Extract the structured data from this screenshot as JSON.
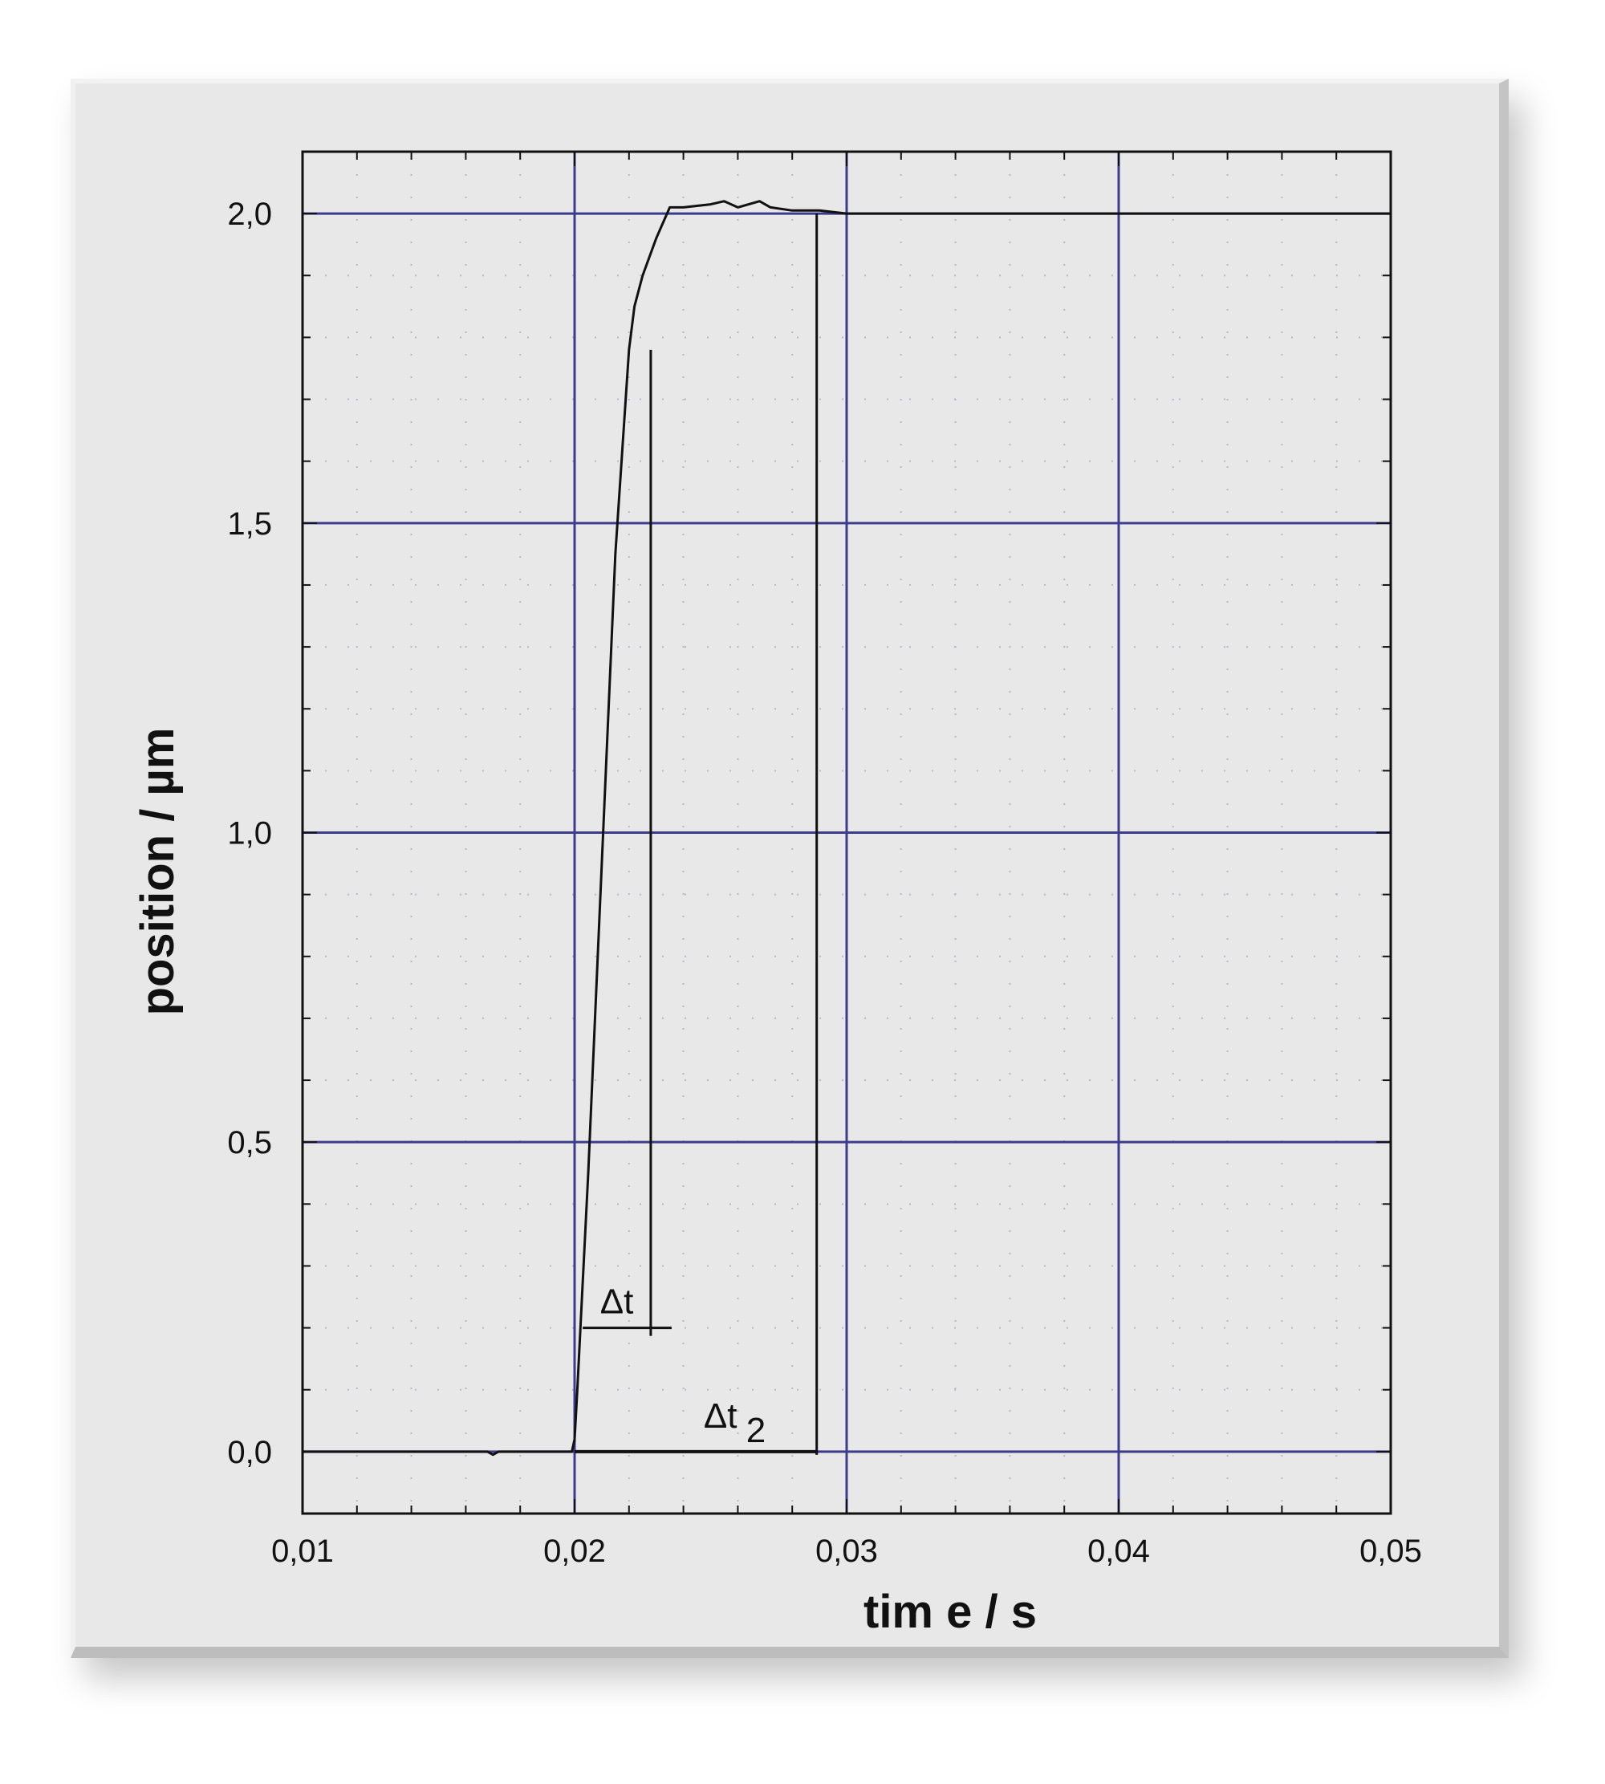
{
  "chart_data": {
    "type": "line",
    "title": "",
    "xlabel": "tim e  / s",
    "ylabel": "position  / µm",
    "xlim": [
      0.01,
      0.05
    ],
    "ylim": [
      -0.1,
      2.1
    ],
    "x_ticks": [
      0.01,
      0.02,
      0.03,
      0.04,
      0.05
    ],
    "x_tick_labels": [
      "0,01",
      "0,02",
      "0,03",
      "0,04",
      "0,05"
    ],
    "y_ticks": [
      0.0,
      0.5,
      1.0,
      1.5,
      2.0
    ],
    "y_tick_labels": [
      "0,0",
      "0,5",
      "1,0",
      "1,5",
      "2,0"
    ],
    "grid": true,
    "legend": "none",
    "colors": {
      "line": "#111111",
      "grid": "#3c3c8c",
      "plot_bg": "#e8e8e8"
    },
    "series": [
      {
        "x": [
          0.01,
          0.0168,
          0.017,
          0.0172,
          0.0199,
          0.02,
          0.0201,
          0.0205,
          0.021,
          0.0215,
          0.022,
          0.0222,
          0.0225,
          0.023,
          0.0235,
          0.024,
          0.025,
          0.0255,
          0.026,
          0.0268,
          0.0272,
          0.028,
          0.029,
          0.03,
          0.035,
          0.04,
          0.045,
          0.05
        ],
        "y": [
          0.0,
          0.0,
          -0.005,
          0.0,
          0.0,
          0.02,
          0.1,
          0.45,
          0.95,
          1.45,
          1.78,
          1.85,
          1.9,
          1.96,
          2.01,
          2.01,
          2.015,
          2.02,
          2.01,
          2.02,
          2.01,
          2.005,
          2.005,
          2.0,
          2.0,
          2.0,
          2.0,
          2.0
        ]
      }
    ],
    "annotations": [
      {
        "text": "Δt",
        "subscript": "",
        "x_start": 0.0203,
        "x_end": 0.0228,
        "y": 0.2
      },
      {
        "text": "Δt",
        "subscript": "2",
        "x_start": 0.02,
        "x_end": 0.0289,
        "y": 0.0
      }
    ]
  }
}
